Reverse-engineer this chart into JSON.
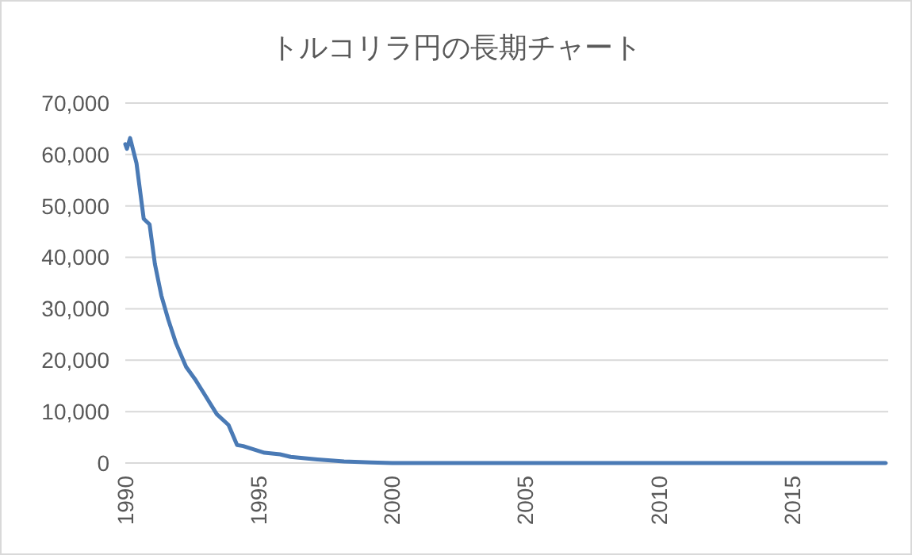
{
  "chart_data": {
    "type": "line",
    "title": "トルコリラ円の長期チャート",
    "xlim": [
      1990,
      2018.6
    ],
    "xticks": [
      1990,
      1995,
      2000,
      2005,
      2010,
      2015
    ],
    "ylim": [
      0,
      70000
    ],
    "yticks": [
      {
        "value": 0,
        "label": "0"
      },
      {
        "value": 10000,
        "label": "10,000"
      },
      {
        "value": 20000,
        "label": "20,000"
      },
      {
        "value": 30000,
        "label": "30,000"
      },
      {
        "value": 40000,
        "label": "40,000"
      },
      {
        "value": 50000,
        "label": "50,000"
      },
      {
        "value": 60000,
        "label": "60,000"
      },
      {
        "value": 70000,
        "label": "70,000"
      }
    ],
    "grid": "y",
    "marker": "none",
    "series": [
      {
        "color": "#4a7ab5",
        "x": [
          1990.0,
          1990.06,
          1990.18,
          1990.42,
          1990.69,
          1990.91,
          1991.11,
          1991.35,
          1991.61,
          1991.9,
          1992.28,
          1992.64,
          1992.94,
          1993.43,
          1993.87,
          1994.19,
          1994.42,
          1995.22,
          1995.8,
          1996.2,
          1997.2,
          1998.2,
          1999.2,
          2000,
          2005,
          2010,
          2015,
          2018.5
        ],
        "values": [
          62000,
          61100,
          63200,
          58300,
          47500,
          46400,
          38700,
          32600,
          27900,
          23300,
          18700,
          16100,
          13600,
          9500,
          7400,
          3500,
          3300,
          2000,
          1700,
          1200,
          700,
          300,
          100,
          0,
          0,
          0,
          0,
          0
        ]
      }
    ]
  }
}
